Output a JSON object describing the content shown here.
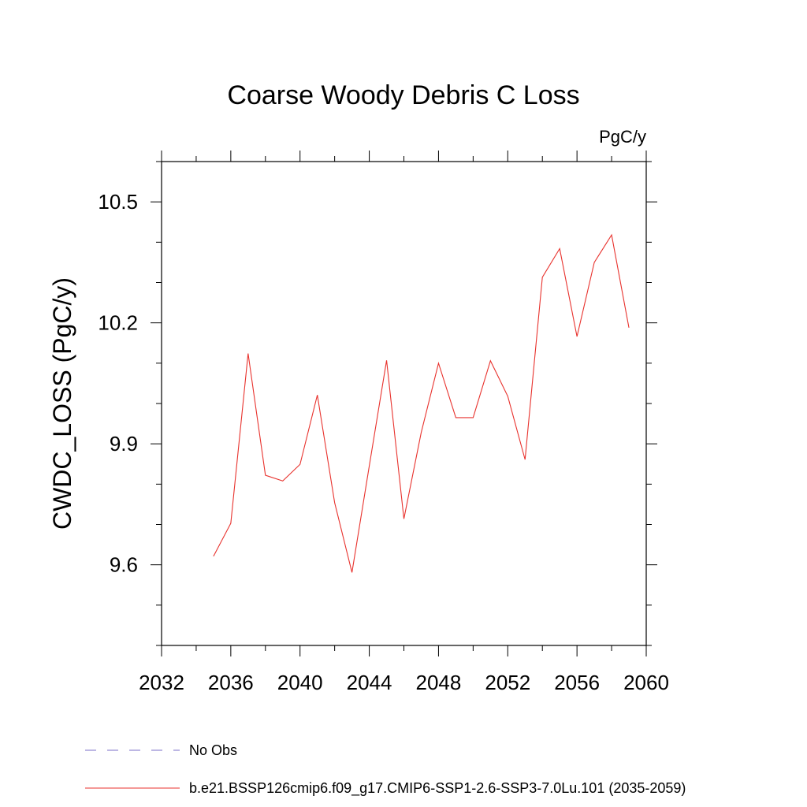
{
  "chart_data": {
    "type": "line",
    "title": "Coarse Woody Debris C Loss",
    "units": "PgC/y",
    "xlabel": "",
    "ylabel": "CWDC_LOSS  (PgC/y)",
    "xlim": [
      2032,
      2060
    ],
    "ylim": [
      9.4,
      10.6
    ],
    "x_ticks": [
      2032,
      2036,
      2040,
      2044,
      2048,
      2052,
      2056,
      2060
    ],
    "x_tick_labels": [
      "2032",
      "2036",
      "2040",
      "2044",
      "2048",
      "2052",
      "2056",
      "2060"
    ],
    "y_ticks": [
      9.6,
      9.9,
      10.2,
      10.5
    ],
    "y_tick_labels": [
      "9.6",
      "9.9",
      "10.2",
      "10.5"
    ],
    "x_minor_step": 2,
    "y_minor_step": 0.1,
    "grid": false,
    "legend_position": "bottom",
    "legend": [
      {
        "label": "No Obs",
        "color": "#7b6fc9",
        "style": "dashed"
      },
      {
        "label": "b.e21.BSSP126cmip6.f09_g17.CMIP6-SSP1-2.6-SSP3-7.0Lu.101 (2035-2059)",
        "color": "#e8322d",
        "style": "solid"
      }
    ],
    "series": [
      {
        "name": "b.e21.BSSP126cmip6.f09_g17.CMIP6-SSP1-2.6-SSP3-7.0Lu.101 (2035-2059)",
        "color": "#e8322d",
        "x": [
          2035,
          2036,
          2037,
          2038,
          2039,
          2040,
          2041,
          2042,
          2043,
          2044,
          2045,
          2046,
          2047,
          2048,
          2049,
          2050,
          2051,
          2052,
          2053,
          2054,
          2055,
          2056,
          2057,
          2058,
          2059
        ],
        "values": [
          9.621,
          9.703,
          10.124,
          9.822,
          9.808,
          9.849,
          10.021,
          9.754,
          9.581,
          9.845,
          10.107,
          9.714,
          9.928,
          10.1,
          9.965,
          9.965,
          10.106,
          10.018,
          9.861,
          10.313,
          10.384,
          10.166,
          10.35,
          10.418,
          10.188
        ]
      }
    ]
  }
}
